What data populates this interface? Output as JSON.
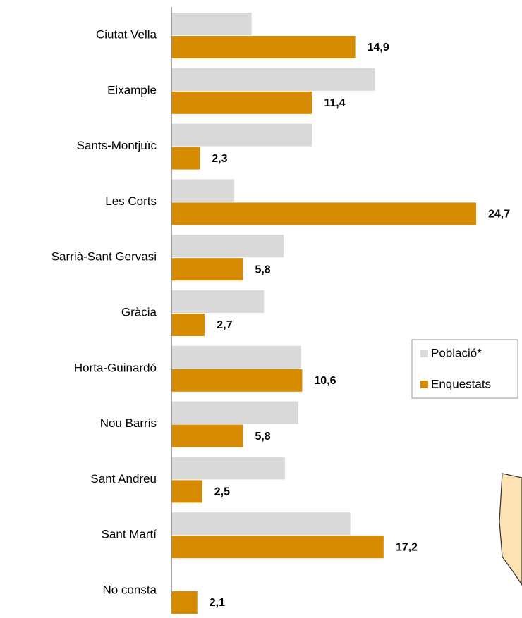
{
  "chart_data": {
    "type": "bar",
    "orientation": "horizontal",
    "categories": [
      "Ciutat Vella",
      "Eixample",
      "Sants-Montjuïc",
      "Les Corts",
      "Sarrià-Sant Gervasi",
      "Gràcia",
      "Horta-Guinardó",
      "Nou Barris",
      "Sant Andreu",
      "Sant Martí",
      "No consta"
    ],
    "series": [
      {
        "name": "Població*",
        "color": "#d9d9d9",
        "values": [
          6.5,
          16.5,
          11.4,
          5.1,
          9.1,
          7.5,
          10.5,
          10.3,
          9.2,
          14.5,
          null
        ]
      },
      {
        "name": "Enquestats",
        "color": "#d68b00",
        "values": [
          14.9,
          11.4,
          2.3,
          24.7,
          5.8,
          2.7,
          10.6,
          5.8,
          2.5,
          17.2,
          2.1
        ],
        "value_labels": [
          "14,9",
          "11,4",
          "2,3",
          "24,7",
          "5,8",
          "2,7",
          "10,6",
          "5,8",
          "2,5",
          "17,2",
          "2,1"
        ]
      }
    ],
    "legend": "right"
  }
}
